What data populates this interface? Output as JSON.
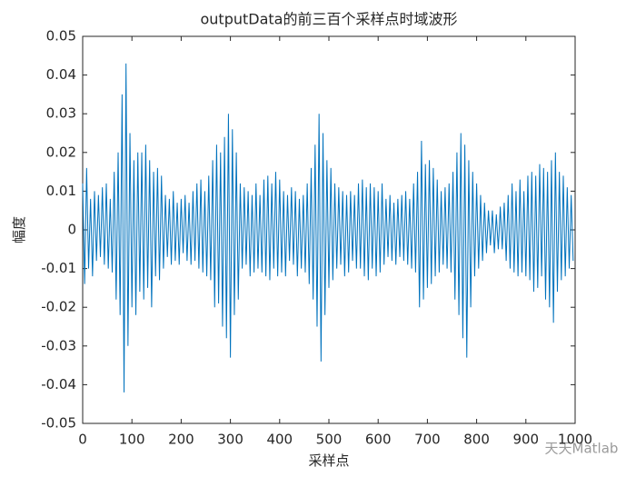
{
  "chart_data": {
    "type": "line",
    "title": "outputData的前三百个采样点时域波形",
    "x_label": "采样点",
    "y_label": "幅度",
    "watermark": "天天Matlab",
    "color": "#0072bd",
    "x": [
      0,
      4,
      8,
      12,
      16,
      20,
      24,
      28,
      32,
      36,
      40,
      44,
      48,
      52,
      56,
      60,
      64,
      68,
      72,
      76,
      80,
      84,
      88,
      92,
      96,
      100,
      104,
      108,
      112,
      116,
      120,
      124,
      128,
      132,
      136,
      140,
      144,
      148,
      152,
      156,
      160,
      164,
      168,
      172,
      176,
      180,
      184,
      188,
      192,
      196,
      200,
      204,
      208,
      212,
      216,
      220,
      224,
      228,
      232,
      236,
      240,
      244,
      248,
      252,
      256,
      260,
      264,
      268,
      272,
      276,
      280,
      284,
      288,
      292,
      296,
      300,
      304,
      308,
      312,
      316,
      320,
      324,
      328,
      332,
      336,
      340,
      344,
      348,
      352,
      356,
      360,
      364,
      368,
      372,
      376,
      380,
      384,
      388,
      392,
      396,
      400,
      404,
      408,
      412,
      416,
      420,
      424,
      428,
      432,
      436,
      440,
      444,
      448,
      452,
      456,
      460,
      464,
      468,
      472,
      476,
      480,
      484,
      488,
      492,
      496,
      500,
      504,
      508,
      512,
      516,
      520,
      524,
      528,
      532,
      536,
      540,
      544,
      548,
      552,
      556,
      560,
      564,
      568,
      572,
      576,
      580,
      584,
      588,
      592,
      596,
      600,
      604,
      608,
      612,
      616,
      620,
      624,
      628,
      632,
      636,
      640,
      644,
      648,
      652,
      656,
      660,
      664,
      668,
      672,
      676,
      680,
      684,
      688,
      692,
      696,
      700,
      704,
      708,
      712,
      716,
      720,
      724,
      728,
      732,
      736,
      740,
      744,
      748,
      752,
      756,
      760,
      764,
      768,
      772,
      776,
      780,
      784,
      788,
      792,
      796,
      800,
      804,
      808,
      812,
      816,
      820,
      824,
      828,
      832,
      836,
      840,
      844,
      848,
      852,
      856,
      860,
      864,
      868,
      872,
      876,
      880,
      884,
      888,
      892,
      896,
      900,
      904,
      908,
      912,
      916,
      920,
      924,
      928,
      932,
      936,
      940,
      944,
      948,
      952,
      956,
      960,
      964,
      968,
      972,
      976,
      980,
      984,
      988,
      992,
      996
    ],
    "values": [
      0.012,
      -0.014,
      0.016,
      -0.01,
      0.008,
      -0.012,
      0.01,
      -0.008,
      0.009,
      -0.007,
      0.011,
      -0.009,
      0.012,
      -0.01,
      0.008,
      -0.011,
      0.015,
      -0.018,
      0.02,
      -0.022,
      0.035,
      -0.042,
      0.043,
      -0.03,
      0.025,
      -0.02,
      0.018,
      -0.022,
      0.02,
      -0.016,
      0.02,
      -0.018,
      0.022,
      -0.015,
      0.018,
      -0.02,
      0.015,
      -0.012,
      0.016,
      -0.013,
      0.014,
      -0.01,
      0.009,
      -0.007,
      0.008,
      -0.009,
      0.01,
      -0.008,
      0.007,
      -0.009,
      0.008,
      -0.006,
      0.009,
      -0.008,
      0.007,
      -0.009,
      0.01,
      -0.008,
      0.012,
      -0.01,
      0.013,
      -0.011,
      0.01,
      -0.012,
      0.014,
      -0.013,
      0.018,
      -0.02,
      0.022,
      -0.019,
      0.02,
      -0.025,
      0.024,
      -0.028,
      0.03,
      -0.033,
      0.026,
      -0.022,
      0.02,
      -0.018,
      0.012,
      -0.01,
      0.011,
      -0.009,
      0.01,
      -0.012,
      0.009,
      -0.011,
      0.012,
      -0.01,
      0.009,
      -0.011,
      0.013,
      -0.012,
      0.014,
      -0.013,
      0.012,
      -0.01,
      0.015,
      -0.012,
      0.013,
      -0.011,
      0.01,
      -0.012,
      0.009,
      -0.008,
      0.011,
      -0.009,
      0.01,
      -0.012,
      0.008,
      -0.01,
      0.009,
      -0.011,
      0.012,
      -0.014,
      0.016,
      -0.018,
      0.022,
      -0.025,
      0.03,
      -0.034,
      0.025,
      -0.022,
      0.018,
      -0.015,
      0.016,
      -0.013,
      0.012,
      -0.01,
      0.011,
      -0.009,
      0.01,
      -0.012,
      0.009,
      -0.011,
      0.01,
      -0.008,
      0.009,
      -0.01,
      0.012,
      -0.01,
      0.013,
      -0.012,
      0.011,
      -0.013,
      0.012,
      -0.01,
      0.011,
      -0.012,
      0.01,
      -0.011,
      0.012,
      -0.009,
      0.008,
      -0.007,
      0.009,
      -0.008,
      0.007,
      -0.009,
      0.008,
      -0.007,
      0.009,
      -0.008,
      0.01,
      -0.009,
      0.008,
      -0.01,
      0.012,
      -0.011,
      0.015,
      -0.02,
      0.023,
      -0.018,
      0.017,
      -0.015,
      0.018,
      -0.014,
      0.016,
      -0.012,
      0.013,
      -0.011,
      0.01,
      -0.009,
      0.011,
      -0.01,
      0.012,
      -0.011,
      0.015,
      -0.018,
      0.02,
      -0.022,
      0.025,
      -0.028,
      0.022,
      -0.033,
      0.018,
      -0.02,
      0.015,
      -0.012,
      0.012,
      -0.01,
      0.009,
      -0.008,
      0.007,
      -0.006,
      0.005,
      -0.004,
      0.005,
      -0.006,
      0.004,
      -0.005,
      0.006,
      -0.005,
      0.007,
      -0.008,
      0.009,
      -0.01,
      0.012,
      -0.011,
      0.01,
      -0.012,
      0.013,
      -0.011,
      0.01,
      -0.012,
      0.014,
      -0.013,
      0.015,
      -0.016,
      0.014,
      -0.015,
      0.017,
      -0.012,
      0.016,
      -0.018,
      0.015,
      -0.02,
      0.018,
      -0.024,
      0.02,
      -0.016,
      0.015,
      -0.013,
      0.014,
      -0.012,
      0.011,
      -0.01,
      0.009,
      -0.008
    ],
    "xlim": [
      0,
      1000
    ],
    "xticks": [
      0,
      100,
      200,
      300,
      400,
      500,
      600,
      700,
      800,
      900,
      1000
    ],
    "ylim": [
      -0.05,
      0.05
    ],
    "yticks": [
      -0.05,
      -0.04,
      -0.03,
      -0.02,
      -0.01,
      0,
      0.01,
      0.02,
      0.03,
      0.04,
      0.05
    ],
    "grid": false
  }
}
